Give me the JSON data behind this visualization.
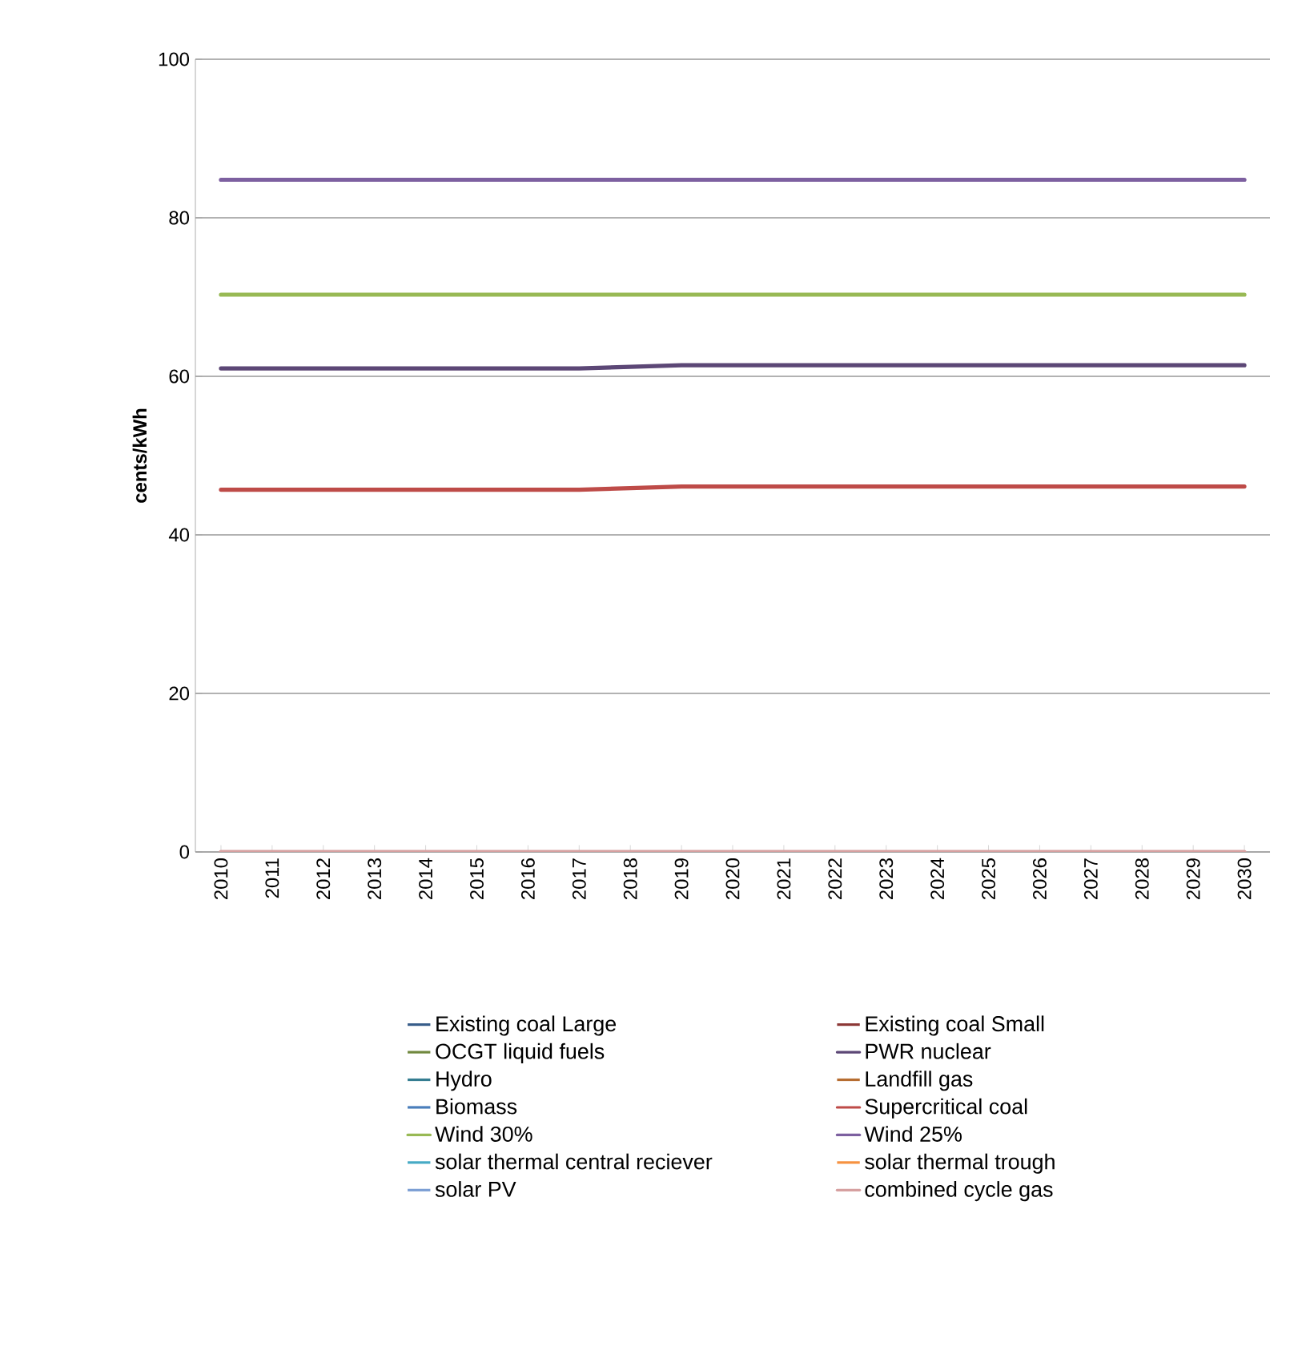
{
  "chart_data": {
    "type": "line",
    "ylabel": "cents/kWh",
    "categories": [
      "2010",
      "2011",
      "2012",
      "2013",
      "2014",
      "2015",
      "2016",
      "2017",
      "2018",
      "2019",
      "2020",
      "2021",
      "2022",
      "2023",
      "2024",
      "2025",
      "2026",
      "2027",
      "2028",
      "2029",
      "2030"
    ],
    "ylim": [
      0,
      100
    ],
    "yticks": [
      0,
      20,
      40,
      60,
      80,
      100
    ],
    "grid": "y",
    "legend": "bottom",
    "marker": "none",
    "line_style": "solid",
    "series": [
      {
        "name": "Existing coal  Large",
        "color": "#385d8a",
        "values": [
          null,
          null,
          null,
          null,
          null,
          null,
          null,
          null,
          null,
          null,
          null,
          null,
          null,
          null,
          null,
          null,
          null,
          null,
          null,
          null,
          null
        ]
      },
      {
        "name": "Existing coal  Small",
        "color": "#8c3836",
        "values": [
          null,
          null,
          null,
          null,
          null,
          null,
          null,
          null,
          null,
          null,
          null,
          null,
          null,
          null,
          null,
          null,
          null,
          null,
          null,
          null,
          null
        ]
      },
      {
        "name": "OCGT liquid fuels",
        "color": "#71893f",
        "values": [
          null,
          null,
          null,
          null,
          null,
          null,
          null,
          null,
          null,
          null,
          null,
          null,
          null,
          null,
          null,
          null,
          null,
          null,
          null,
          null,
          null
        ]
      },
      {
        "name": "PWR nuclear",
        "color": "#5c4776",
        "values": [
          61.0,
          61.0,
          61.0,
          61.0,
          61.0,
          61.0,
          61.0,
          61.0,
          61.2,
          61.4,
          61.4,
          61.4,
          61.4,
          61.4,
          61.4,
          61.4,
          61.4,
          61.4,
          61.4,
          61.4,
          61.4
        ]
      },
      {
        "name": "Hydro",
        "color": "#357d91",
        "values": [
          null,
          null,
          null,
          null,
          null,
          null,
          null,
          null,
          null,
          null,
          null,
          null,
          null,
          null,
          null,
          null,
          null,
          null,
          null,
          null,
          null
        ]
      },
      {
        "name": "Landfill gas",
        "color": "#b66d31",
        "values": [
          null,
          null,
          null,
          null,
          null,
          null,
          null,
          null,
          null,
          null,
          null,
          null,
          null,
          null,
          null,
          null,
          null,
          null,
          null,
          null,
          null
        ]
      },
      {
        "name": "Biomass",
        "color": "#4a7ebb",
        "values": [
          null,
          null,
          null,
          null,
          null,
          null,
          null,
          null,
          null,
          null,
          null,
          null,
          null,
          null,
          null,
          null,
          null,
          null,
          null,
          null,
          null
        ]
      },
      {
        "name": "Supercritical coal",
        "color": "#be4b48",
        "values": [
          45.7,
          45.7,
          45.7,
          45.7,
          45.7,
          45.7,
          45.7,
          45.7,
          45.9,
          46.1,
          46.1,
          46.1,
          46.1,
          46.1,
          46.1,
          46.1,
          46.1,
          46.1,
          46.1,
          46.1,
          46.1
        ]
      },
      {
        "name": "Wind 30%",
        "color": "#98b954",
        "values": [
          70.3,
          70.3,
          70.3,
          70.3,
          70.3,
          70.3,
          70.3,
          70.3,
          70.3,
          70.3,
          70.3,
          70.3,
          70.3,
          70.3,
          70.3,
          70.3,
          70.3,
          70.3,
          70.3,
          70.3,
          70.3
        ]
      },
      {
        "name": "Wind 25%",
        "color": "#7d60a0",
        "values": [
          84.8,
          84.8,
          84.8,
          84.8,
          84.8,
          84.8,
          84.8,
          84.8,
          84.8,
          84.8,
          84.8,
          84.8,
          84.8,
          84.8,
          84.8,
          84.8,
          84.8,
          84.8,
          84.8,
          84.8,
          84.8
        ]
      },
      {
        "name": "solar thermal  central reciever",
        "color": "#46aac5",
        "values": [
          null,
          null,
          null,
          null,
          null,
          null,
          null,
          null,
          null,
          null,
          null,
          null,
          null,
          null,
          null,
          null,
          null,
          null,
          null,
          null,
          null
        ]
      },
      {
        "name": "solar thermal  trough",
        "color": "#f69240",
        "values": [
          null,
          null,
          null,
          null,
          null,
          null,
          null,
          null,
          null,
          null,
          null,
          null,
          null,
          null,
          null,
          null,
          null,
          null,
          null,
          null,
          null
        ]
      },
      {
        "name": "solar PV",
        "color": "#7c9fd4",
        "values": [
          null,
          null,
          null,
          null,
          null,
          null,
          null,
          null,
          null,
          null,
          null,
          null,
          null,
          null,
          null,
          null,
          null,
          null,
          null,
          null,
          null
        ]
      },
      {
        "name": "combined cycle gas",
        "color": "#d6a0a0",
        "values": [
          0,
          0,
          0,
          0,
          0,
          0,
          0,
          0,
          0,
          0,
          0,
          0,
          0,
          0,
          0,
          0,
          0,
          0,
          0,
          0,
          0
        ]
      }
    ]
  }
}
